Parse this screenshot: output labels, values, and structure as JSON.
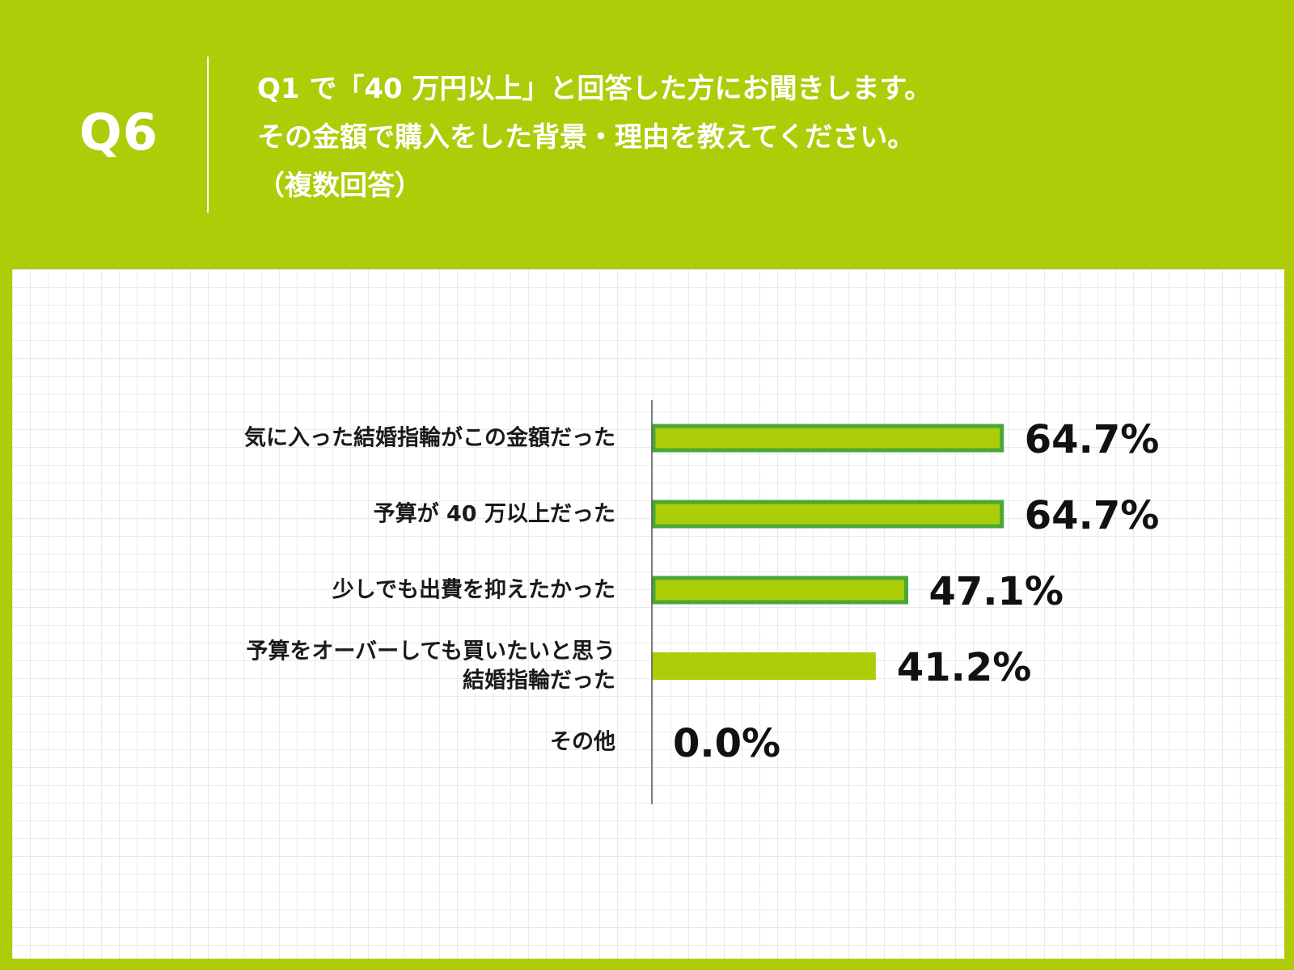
{
  "header": {
    "question_number": "Q6",
    "question_lines": [
      "Q1 で「40 万円以上」と回答した方にお聞きします。",
      "その金額で購入をした背景・理由を教えてください。",
      "（複数回答）"
    ]
  },
  "colors": {
    "background": "#accd08",
    "bar_fill": "#accd08",
    "bar_outline": "#4aa838",
    "text": "#111111"
  },
  "chart_data": {
    "type": "bar",
    "orientation": "horizontal",
    "unit": "%",
    "xlim": [
      0,
      100
    ],
    "grid": false,
    "categories": [
      [
        "気に入った結婚指輪がこの金額だった"
      ],
      [
        "予算が 40 万以上だった"
      ],
      [
        "少しでも出費を抑えたかった"
      ],
      [
        "予算をオーバーしても買いたいと思う",
        "結婚指輪だった"
      ],
      [
        "その他"
      ]
    ],
    "values": [
      64.7,
      64.7,
      47.1,
      41.2,
      0.0
    ],
    "value_labels": [
      "64.7%",
      "64.7%",
      "47.1%",
      "41.2%",
      "0.0%"
    ],
    "highlighted": [
      true,
      true,
      true,
      false,
      false
    ]
  }
}
